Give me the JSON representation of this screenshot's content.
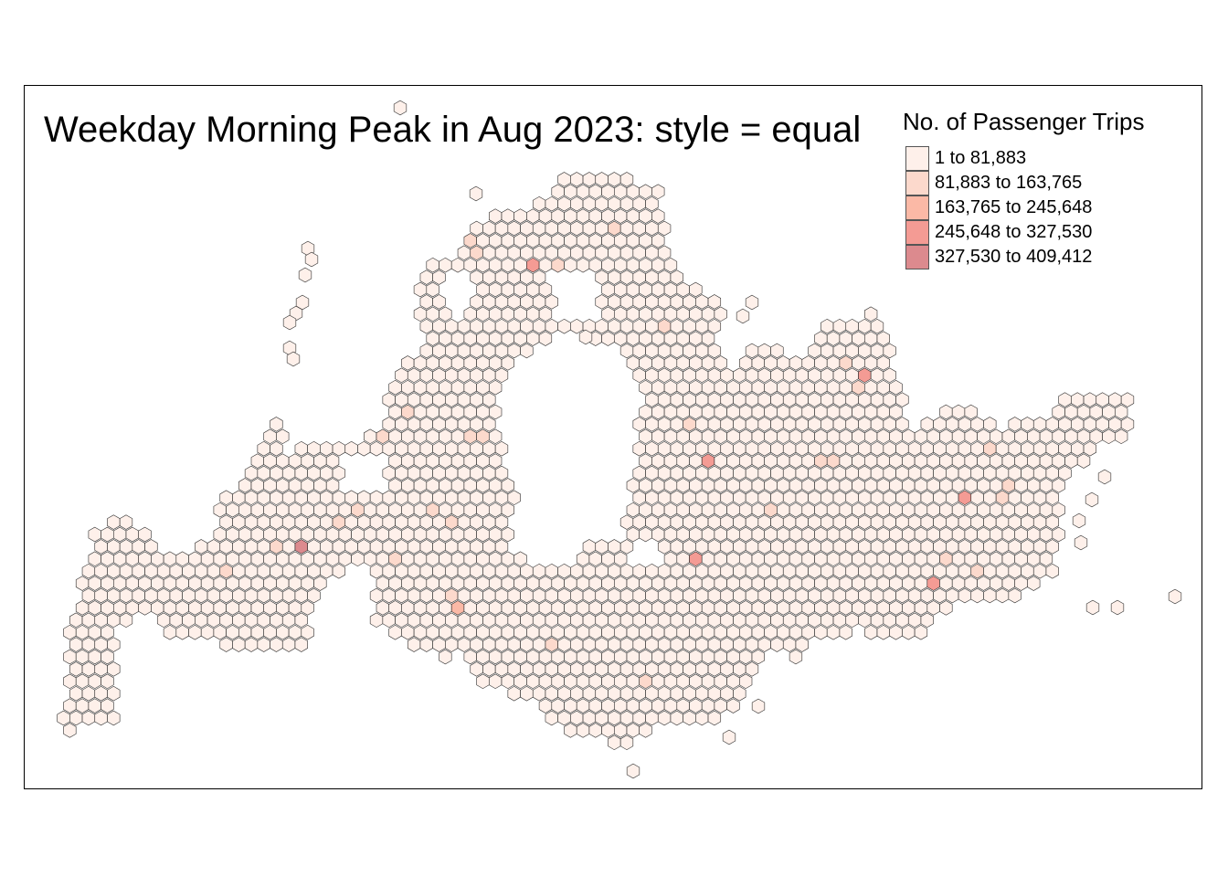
{
  "title": "Weekday Morning Peak in Aug 2023: style = equal",
  "legend": {
    "title": "No. of Passenger Trips",
    "classes": [
      {
        "label": "1 to 81,883",
        "color": "#fef0ea"
      },
      {
        "label": "81,883 to 163,765",
        "color": "#fcd9cc"
      },
      {
        "label": "163,765 to 245,648",
        "color": "#fbb9a6"
      },
      {
        "label": "245,648 to 327,530",
        "color": "#f49b94"
      },
      {
        "label": "327,530 to 409,412",
        "color": "#dc8a8e"
      }
    ]
  },
  "map_data": {
    "type": "hexagon choropleth",
    "variable": "No. of Passenger Trips",
    "classification": "equal",
    "class_counts_estimate": {
      "1 to 81,883": "majority",
      "81,883 to 163,765": "~25",
      "163,765 to 245,648": "~5",
      "245,648 to 327,530": "~4",
      "327,530 to 409,412": "1"
    }
  }
}
